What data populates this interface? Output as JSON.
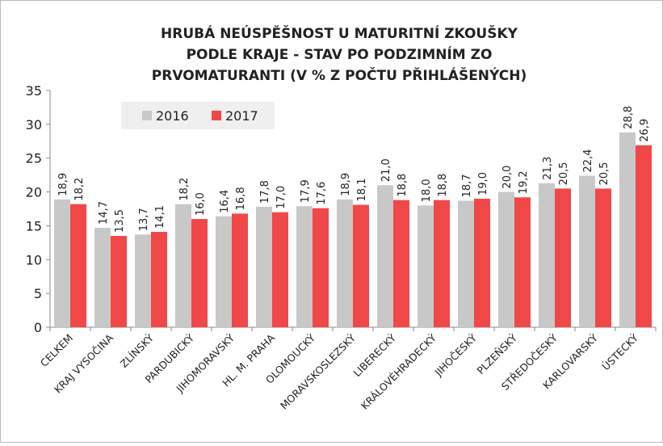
{
  "chart_data": {
    "type": "bar",
    "title": [
      "HRUBÁ NEÚSPĚŠNOST U MATURITNÍ ZKOUŠKY",
      "PODLE KRAJE - STAV PO PODZIMNÍM ZO",
      "PRVOMATURANTI (V % Z POČTU PŘIHLÁŠENÝCH)"
    ],
    "categories": [
      "CELKEM",
      "KRAJ VYSOČINA",
      "ZLÍNSKÝ",
      "PARDUBICKÝ",
      "JIHOMORAVSKÝ",
      "HL. M. PRAHA",
      "OLOMOUCKÝ",
      "MORAVSKOSLEZSKÝ",
      "LIBERECKÝ",
      "KRÁLOVÉHRADECKÝ",
      "JIHOČESKÝ",
      "PLZEŇSKÝ",
      "STŘEDOČESKÝ",
      "KARLOVARSKÝ",
      "ÚSTECKÝ"
    ],
    "series": [
      {
        "name": "2016",
        "color": "#c8c8c8",
        "values": [
          18.9,
          14.7,
          13.7,
          18.2,
          16.4,
          17.8,
          17.9,
          18.9,
          21.0,
          18.0,
          18.7,
          20.0,
          21.3,
          22.4,
          28.8
        ],
        "value_labels": [
          "18,9",
          "14,7",
          "13,7",
          "18,2",
          "16,4",
          "17,8",
          "17,9",
          "18,9",
          "21,0",
          "18,0",
          "18,7",
          "20,0",
          "21,3",
          "22,4",
          "28,8"
        ]
      },
      {
        "name": "2017",
        "color": "#f04848",
        "values": [
          18.2,
          13.5,
          14.1,
          16.0,
          16.8,
          17.0,
          17.6,
          18.1,
          18.8,
          18.8,
          19.0,
          19.2,
          20.5,
          20.5,
          26.9
        ],
        "value_labels": [
          "18,2",
          "13,5",
          "14,1",
          "16,0",
          "16,8",
          "17,0",
          "17,6",
          "18,1",
          "18,8",
          "18,8",
          "19,0",
          "19,2",
          "20,5",
          "20,5",
          "26,9"
        ]
      }
    ],
    "ylim": [
      0,
      35
    ],
    "yticks": [
      0,
      5,
      10,
      15,
      20,
      25,
      30,
      35
    ],
    "grid": false
  }
}
